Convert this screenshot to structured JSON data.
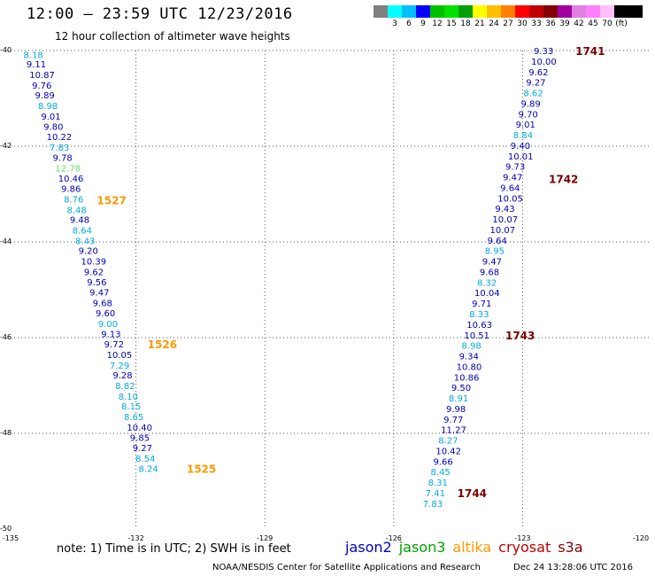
{
  "header": {
    "title": "12:00 — 23:59 UTC 12/23/2016",
    "subtitle": "12 hour collection of altimeter wave heights"
  },
  "colorbar": {
    "colors": [
      "#808080",
      "#00ffff",
      "#00bfff",
      "#0000ff",
      "#00c000",
      "#00e000",
      "#00a000",
      "#ffff00",
      "#ffc000",
      "#ff8000",
      "#ff0000",
      "#c00000",
      "#800000",
      "#a000a0",
      "#e080e0",
      "#ff80ff",
      "#ffc0ff",
      "#000000",
      "#000000"
    ],
    "ticks": [
      "3",
      "6",
      "9",
      "12",
      "15",
      "18",
      "21",
      "24",
      "27",
      "30",
      "33",
      "36",
      "39",
      "42",
      "45",
      "70",
      "(ft)"
    ]
  },
  "axes": {
    "lat_labels": [
      "-40",
      "-42",
      "-44",
      "-46",
      "-48",
      "-50"
    ],
    "lon_labels": [
      "-135",
      "-132",
      "-129",
      "-126",
      "-123",
      "-120"
    ],
    "lat_range": [
      -50,
      -40
    ],
    "lon_range": [
      -135,
      -120
    ]
  },
  "series": {
    "colors": {
      "jason2": "#0000c0",
      "jason3": "#00a000",
      "altika": "#ff9900",
      "cryosat": "#c00000",
      "s3a": "#7a0000"
    },
    "value_colors": {
      "light": "#00aadd",
      "dark": "#0000b0",
      "green": "#66dd66"
    },
    "left_track": [
      {
        "v": "8.18",
        "lat": -40.08,
        "lon": -134.62,
        "c": "light"
      },
      {
        "v": "9.11",
        "lat": -40.28,
        "lon": -134.55,
        "c": "dark"
      },
      {
        "v": "10.87",
        "lat": -40.5,
        "lon": -134.48,
        "c": "dark"
      },
      {
        "v": "9.76",
        "lat": -40.72,
        "lon": -134.42,
        "c": "dark"
      },
      {
        "v": "9.89",
        "lat": -40.93,
        "lon": -134.35,
        "c": "dark"
      },
      {
        "v": "8.98",
        "lat": -41.15,
        "lon": -134.28,
        "c": "light"
      },
      {
        "v": "9.01",
        "lat": -41.37,
        "lon": -134.21,
        "c": "dark"
      },
      {
        "v": "9.80",
        "lat": -41.58,
        "lon": -134.15,
        "c": "dark"
      },
      {
        "v": "10.22",
        "lat": -41.8,
        "lon": -134.08,
        "c": "dark"
      },
      {
        "v": "7.83",
        "lat": -42.02,
        "lon": -134.01,
        "c": "light"
      },
      {
        "v": "9.78",
        "lat": -42.23,
        "lon": -133.94,
        "c": "dark"
      },
      {
        "v": "12.78",
        "lat": -42.45,
        "lon": -133.88,
        "c": "green"
      },
      {
        "v": "10.46",
        "lat": -42.67,
        "lon": -133.81,
        "c": "dark"
      },
      {
        "v": "9.86",
        "lat": -42.88,
        "lon": -133.74,
        "c": "dark"
      },
      {
        "v": "8.76",
        "lat": -43.1,
        "lon": -133.68,
        "c": "light"
      },
      {
        "v": "8.48",
        "lat": -43.32,
        "lon": -133.61,
        "c": "light"
      },
      {
        "v": "9.48",
        "lat": -43.53,
        "lon": -133.54,
        "c": "dark"
      },
      {
        "v": "8.64",
        "lat": -43.75,
        "lon": -133.48,
        "c": "light"
      },
      {
        "v": "8.43",
        "lat": -43.97,
        "lon": -133.41,
        "c": "light"
      },
      {
        "v": "9.20",
        "lat": -44.18,
        "lon": -133.34,
        "c": "dark"
      },
      {
        "v": "10.39",
        "lat": -44.4,
        "lon": -133.28,
        "c": "dark"
      },
      {
        "v": "9.62",
        "lat": -44.62,
        "lon": -133.21,
        "c": "dark"
      },
      {
        "v": "9.56",
        "lat": -44.83,
        "lon": -133.14,
        "c": "dark"
      },
      {
        "v": "9.47",
        "lat": -45.05,
        "lon": -133.08,
        "c": "dark"
      },
      {
        "v": "9.68",
        "lat": -45.27,
        "lon": -133.01,
        "c": "dark"
      },
      {
        "v": "9.60",
        "lat": -45.48,
        "lon": -132.94,
        "c": "dark"
      },
      {
        "v": "9.00",
        "lat": -45.7,
        "lon": -132.88,
        "c": "light"
      },
      {
        "v": "9.13",
        "lat": -45.92,
        "lon": -132.81,
        "c": "dark"
      },
      {
        "v": "9.72",
        "lat": -46.13,
        "lon": -132.74,
        "c": "dark"
      },
      {
        "v": "10.05",
        "lat": -46.35,
        "lon": -132.68,
        "c": "dark"
      },
      {
        "v": "7.29",
        "lat": -46.57,
        "lon": -132.61,
        "c": "light"
      },
      {
        "v": "9.28",
        "lat": -46.78,
        "lon": -132.54,
        "c": "dark"
      },
      {
        "v": "8.82",
        "lat": -47.0,
        "lon": -132.48,
        "c": "light"
      },
      {
        "v": "8.10",
        "lat": -47.22,
        "lon": -132.41,
        "c": "light"
      },
      {
        "v": "8.15",
        "lat": -47.43,
        "lon": -132.34,
        "c": "light"
      },
      {
        "v": "8.65",
        "lat": -47.65,
        "lon": -132.28,
        "c": "light"
      },
      {
        "v": "10.40",
        "lat": -47.87,
        "lon": -132.21,
        "c": "dark"
      },
      {
        "v": "9.85",
        "lat": -48.08,
        "lon": -132.14,
        "c": "dark"
      },
      {
        "v": "9.27",
        "lat": -48.3,
        "lon": -132.08,
        "c": "dark"
      },
      {
        "v": "8.54",
        "lat": -48.52,
        "lon": -132.01,
        "c": "light"
      },
      {
        "v": "8.24",
        "lat": -48.73,
        "lon": -131.94,
        "c": "light"
      }
    ],
    "right_track": [
      {
        "v": "9.33",
        "lat": -40.0,
        "lon": -122.74,
        "c": "dark"
      },
      {
        "v": "10.00",
        "lat": -40.22,
        "lon": -122.8,
        "c": "dark"
      },
      {
        "v": "9.62",
        "lat": -40.44,
        "lon": -122.86,
        "c": "dark"
      },
      {
        "v": "9.27",
        "lat": -40.66,
        "lon": -122.92,
        "c": "dark"
      },
      {
        "v": "8.62",
        "lat": -40.88,
        "lon": -122.98,
        "c": "light"
      },
      {
        "v": "9.89",
        "lat": -41.1,
        "lon": -123.04,
        "c": "dark"
      },
      {
        "v": "9.70",
        "lat": -41.32,
        "lon": -123.1,
        "c": "dark"
      },
      {
        "v": "9.01",
        "lat": -41.54,
        "lon": -123.16,
        "c": "dark"
      },
      {
        "v": "8.84",
        "lat": -41.76,
        "lon": -123.22,
        "c": "light"
      },
      {
        "v": "9.40",
        "lat": -41.98,
        "lon": -123.28,
        "c": "dark"
      },
      {
        "v": "10.01",
        "lat": -42.2,
        "lon": -123.34,
        "c": "dark"
      },
      {
        "v": "9.73",
        "lat": -42.42,
        "lon": -123.4,
        "c": "dark"
      },
      {
        "v": "9.47",
        "lat": -42.64,
        "lon": -123.46,
        "c": "dark"
      },
      {
        "v": "9.64",
        "lat": -42.86,
        "lon": -123.52,
        "c": "dark"
      },
      {
        "v": "10.05",
        "lat": -43.08,
        "lon": -123.58,
        "c": "dark"
      },
      {
        "v": "9.43",
        "lat": -43.3,
        "lon": -123.64,
        "c": "dark"
      },
      {
        "v": "10.07",
        "lat": -43.52,
        "lon": -123.7,
        "c": "dark"
      },
      {
        "v": "10.07",
        "lat": -43.74,
        "lon": -123.76,
        "c": "dark"
      },
      {
        "v": "9.64",
        "lat": -43.96,
        "lon": -123.82,
        "c": "dark"
      },
      {
        "v": "8.95",
        "lat": -44.18,
        "lon": -123.88,
        "c": "light"
      },
      {
        "v": "9.47",
        "lat": -44.4,
        "lon": -123.94,
        "c": "dark"
      },
      {
        "v": "9.68",
        "lat": -44.62,
        "lon": -124.0,
        "c": "dark"
      },
      {
        "v": "8.32",
        "lat": -44.84,
        "lon": -124.06,
        "c": "light"
      },
      {
        "v": "10.04",
        "lat": -45.06,
        "lon": -124.12,
        "c": "dark"
      },
      {
        "v": "9.71",
        "lat": -45.28,
        "lon": -124.18,
        "c": "dark"
      },
      {
        "v": "8.33",
        "lat": -45.5,
        "lon": -124.24,
        "c": "light"
      },
      {
        "v": "10.63",
        "lat": -45.72,
        "lon": -124.3,
        "c": "dark"
      },
      {
        "v": "10.51",
        "lat": -45.94,
        "lon": -124.36,
        "c": "dark"
      },
      {
        "v": "8.98",
        "lat": -46.16,
        "lon": -124.42,
        "c": "light"
      },
      {
        "v": "9.34",
        "lat": -46.38,
        "lon": -124.48,
        "c": "dark"
      },
      {
        "v": "10.80",
        "lat": -46.6,
        "lon": -124.54,
        "c": "dark"
      },
      {
        "v": "10.86",
        "lat": -46.82,
        "lon": -124.6,
        "c": "dark"
      },
      {
        "v": "9.50",
        "lat": -47.04,
        "lon": -124.66,
        "c": "dark"
      },
      {
        "v": "8.91",
        "lat": -47.26,
        "lon": -124.72,
        "c": "light"
      },
      {
        "v": "9.98",
        "lat": -47.48,
        "lon": -124.78,
        "c": "dark"
      },
      {
        "v": "9.77",
        "lat": -47.7,
        "lon": -124.84,
        "c": "dark"
      },
      {
        "v": "11.27",
        "lat": -47.92,
        "lon": -124.9,
        "c": "dark"
      },
      {
        "v": "8.27",
        "lat": -48.14,
        "lon": -124.96,
        "c": "light"
      },
      {
        "v": "10.42",
        "lat": -48.36,
        "lon": -125.02,
        "c": "dark"
      },
      {
        "v": "9.66",
        "lat": -48.58,
        "lon": -125.08,
        "c": "dark"
      },
      {
        "v": "8.45",
        "lat": -48.8,
        "lon": -125.14,
        "c": "light"
      },
      {
        "v": "8.31",
        "lat": -49.02,
        "lon": -125.2,
        "c": "light"
      },
      {
        "v": "7.41",
        "lat": -49.24,
        "lon": -125.26,
        "c": "light"
      },
      {
        "v": "7.83",
        "lat": -49.46,
        "lon": -125.32,
        "c": "light"
      }
    ],
    "pass_labels": [
      {
        "text": "1527",
        "lat": -43.12,
        "lon": -132.91,
        "sat": "altika"
      },
      {
        "text": "1526",
        "lat": -46.13,
        "lon": -131.73,
        "sat": "altika"
      },
      {
        "text": "1525",
        "lat": -48.73,
        "lon": -130.82,
        "sat": "altika"
      },
      {
        "text": "1741",
        "lat": -40.0,
        "lon": -121.77,
        "sat": "s3a"
      },
      {
        "text": "1742",
        "lat": -42.68,
        "lon": -122.39,
        "sat": "s3a"
      },
      {
        "text": "1743",
        "lat": -45.94,
        "lon": -123.4,
        "sat": "s3a"
      },
      {
        "text": "1744",
        "lat": -49.24,
        "lon": -124.52,
        "sat": "s3a"
      }
    ]
  },
  "footer": {
    "note": "note: 1) Time is in UTC; 2) SWH is in feet",
    "legend": [
      {
        "name": "jason2",
        "key": "jason2"
      },
      {
        "name": "jason3",
        "key": "jason3"
      },
      {
        "name": "altika",
        "key": "altika"
      },
      {
        "name": "cryosat",
        "key": "cryosat"
      },
      {
        "name": "s3a",
        "key": "s3a"
      }
    ],
    "credit": "NOAA/NESDIS Center for Satellite Applications and Research",
    "timestamp": "Dec 24 13:28:06 UTC 2016"
  }
}
